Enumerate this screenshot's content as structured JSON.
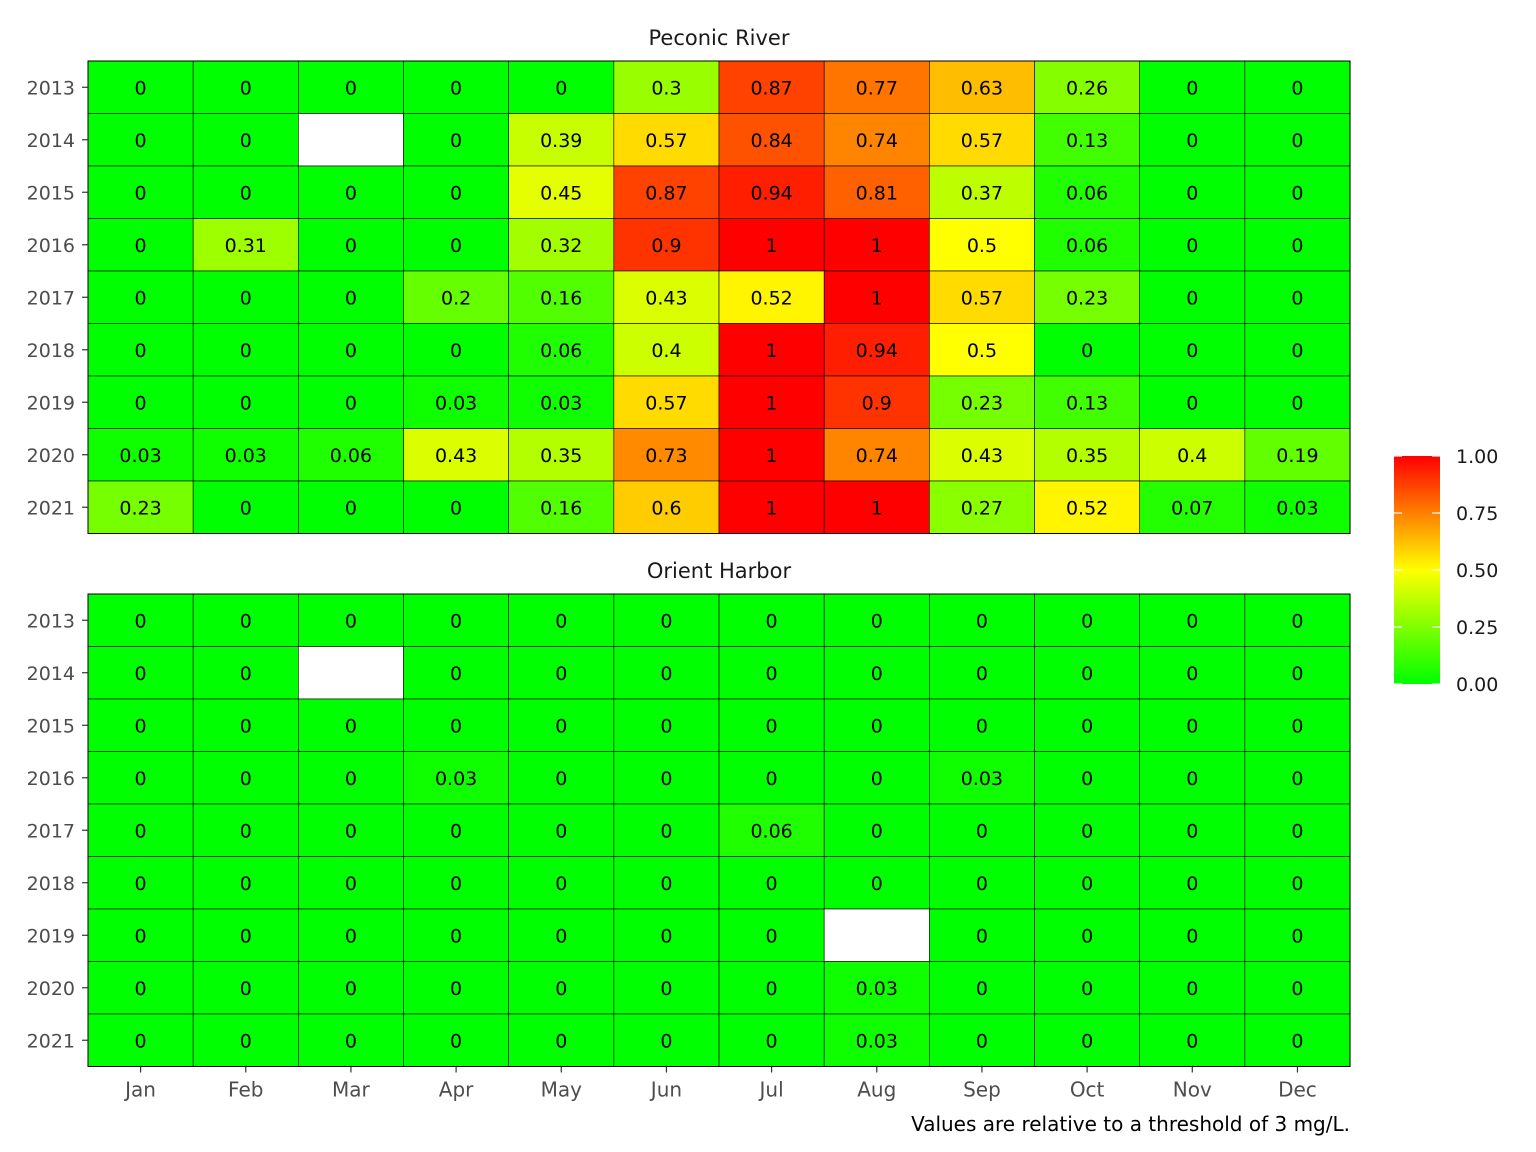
{
  "chart_data": {
    "type": "heatmap",
    "months": [
      "Jan",
      "Feb",
      "Mar",
      "Apr",
      "May",
      "Jun",
      "Jul",
      "Aug",
      "Sep",
      "Oct",
      "Nov",
      "Dec"
    ],
    "years": [
      "2013",
      "2014",
      "2015",
      "2016",
      "2017",
      "2018",
      "2019",
      "2020",
      "2021"
    ],
    "panels": [
      {
        "title": "Peconic River",
        "values": [
          [
            0,
            0,
            0,
            0,
            0,
            0.3,
            0.87,
            0.77,
            0.63,
            0.26,
            0,
            0
          ],
          [
            0,
            0,
            null,
            0,
            0.39,
            0.57,
            0.84,
            0.74,
            0.57,
            0.13,
            0,
            0
          ],
          [
            0,
            0,
            0,
            0,
            0.45,
            0.87,
            0.94,
            0.81,
            0.37,
            0.06,
            0,
            0
          ],
          [
            0,
            0.31,
            0,
            0,
            0.32,
            0.9,
            1,
            1,
            0.5,
            0.06,
            0,
            0
          ],
          [
            0,
            0,
            0,
            0.2,
            0.16,
            0.43,
            0.52,
            1,
            0.57,
            0.23,
            0,
            0
          ],
          [
            0,
            0,
            0,
            0,
            0.06,
            0.4,
            1,
            0.94,
            0.5,
            0,
            0,
            0
          ],
          [
            0,
            0,
            0,
            0.03,
            0.03,
            0.57,
            1,
            0.9,
            0.23,
            0.13,
            0,
            0
          ],
          [
            0.03,
            0.03,
            0.06,
            0.43,
            0.35,
            0.73,
            1,
            0.74,
            0.43,
            0.35,
            0.4,
            0.19
          ],
          [
            0.23,
            0,
            0,
            0,
            0.16,
            0.6,
            1,
            1,
            0.27,
            0.52,
            0.07,
            0.03
          ]
        ]
      },
      {
        "title": "Orient Harbor",
        "values": [
          [
            0,
            0,
            0,
            0,
            0,
            0,
            0,
            0,
            0,
            0,
            0,
            0
          ],
          [
            0,
            0,
            null,
            0,
            0,
            0,
            0,
            0,
            0,
            0,
            0,
            0
          ],
          [
            0,
            0,
            0,
            0,
            0,
            0,
            0,
            0,
            0,
            0,
            0,
            0
          ],
          [
            0,
            0,
            0,
            0.03,
            0,
            0,
            0,
            0,
            0.03,
            0,
            0,
            0
          ],
          [
            0,
            0,
            0,
            0,
            0,
            0,
            0.06,
            0,
            0,
            0,
            0,
            0
          ],
          [
            0,
            0,
            0,
            0,
            0,
            0,
            0,
            0,
            0,
            0,
            0,
            0
          ],
          [
            0,
            0,
            0,
            0,
            0,
            0,
            0,
            null,
            0,
            0,
            0,
            0
          ],
          [
            0,
            0,
            0,
            0,
            0,
            0,
            0,
            0.03,
            0,
            0,
            0,
            0
          ],
          [
            0,
            0,
            0,
            0,
            0,
            0,
            0,
            0.03,
            0,
            0,
            0,
            0
          ]
        ]
      }
    ],
    "color_scale": {
      "range": [
        0,
        1
      ],
      "stops": [
        {
          "value": 0,
          "color": "#00ff00"
        },
        {
          "value": 0.5,
          "color": "#ffff00"
        },
        {
          "value": 1,
          "color": "#ff0000"
        }
      ],
      "missing_color": "#ffffff"
    },
    "legend": {
      "placement": "right",
      "ticks": [
        "0.00",
        "0.25",
        "0.50",
        "0.75",
        "1.00"
      ]
    },
    "caption": "Values are relative to a threshold of 3 mg/L."
  }
}
